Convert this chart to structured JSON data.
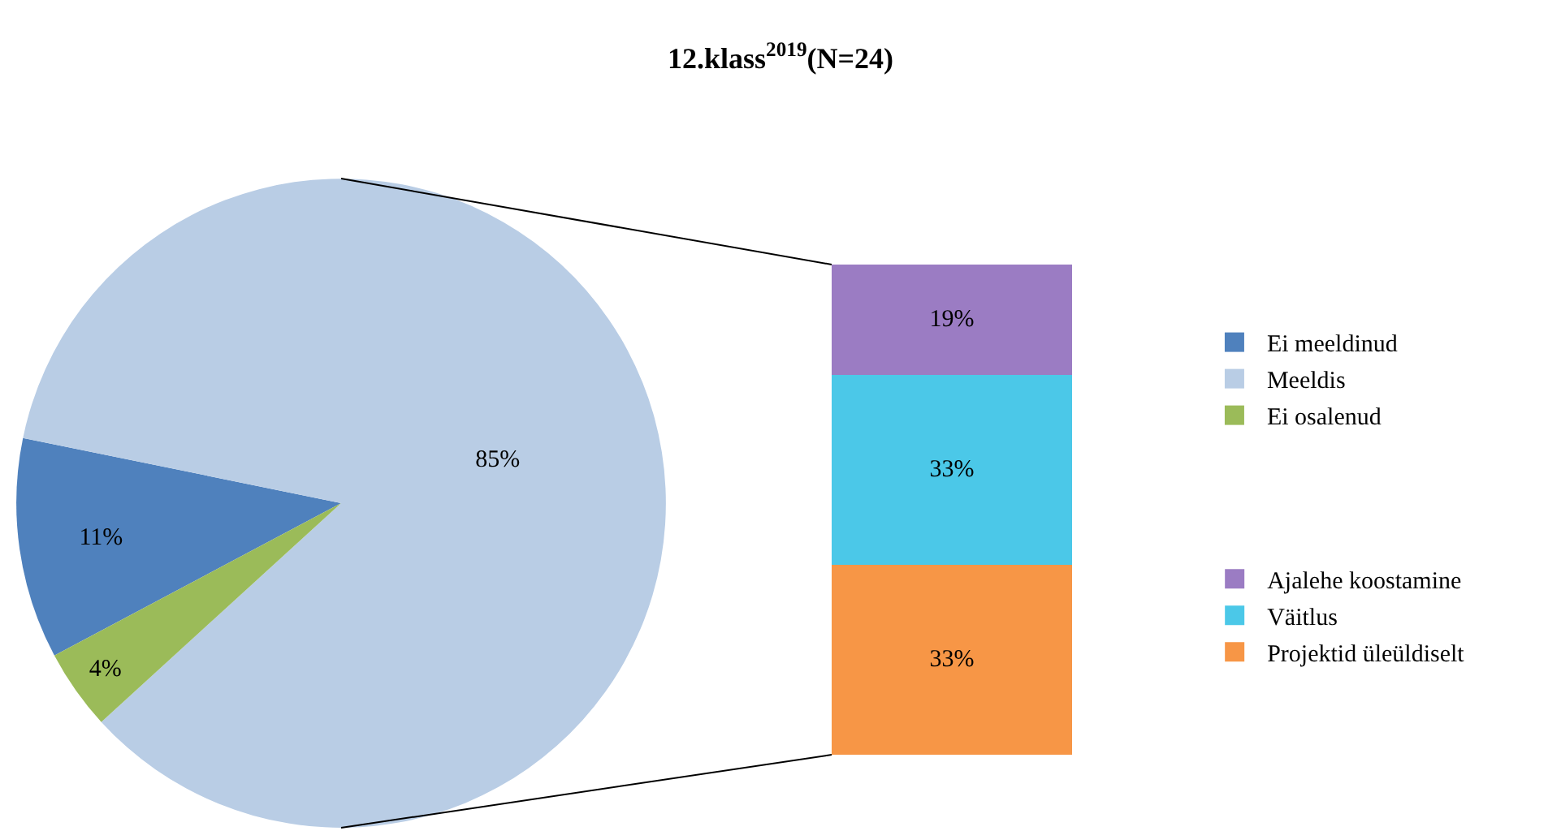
{
  "chart_data": [
    {
      "type": "pie",
      "title": "12.klass$^{2019}$(N=24)",
      "categories": [
        "Ei meeldinud",
        "Meeldis",
        "Ei osalenud"
      ],
      "values": [
        11,
        85,
        4
      ],
      "value_labels": [
        "11%",
        "85%",
        "4%"
      ],
      "colors": [
        "#4f81bd",
        "#b9cde5",
        "#9bbb59"
      ],
      "legend": "right"
    },
    {
      "type": "bar",
      "stacked": true,
      "categories": [
        null
      ],
      "legend": "right",
      "series": [
        {
          "name": "Projektid üleüldiselt",
          "color": "#f79646",
          "values": [
            33
          ],
          "value_labels": [
            "33%"
          ]
        },
        {
          "name": "Väitlus",
          "color": "#4bc8e8",
          "values": [
            33
          ],
          "value_labels": [
            "33%"
          ]
        },
        {
          "name": "Ajalehe koostamine",
          "color": "#9b7cc3",
          "values": [
            19
          ],
          "value_labels": [
            "19%"
          ]
        }
      ]
    }
  ]
}
